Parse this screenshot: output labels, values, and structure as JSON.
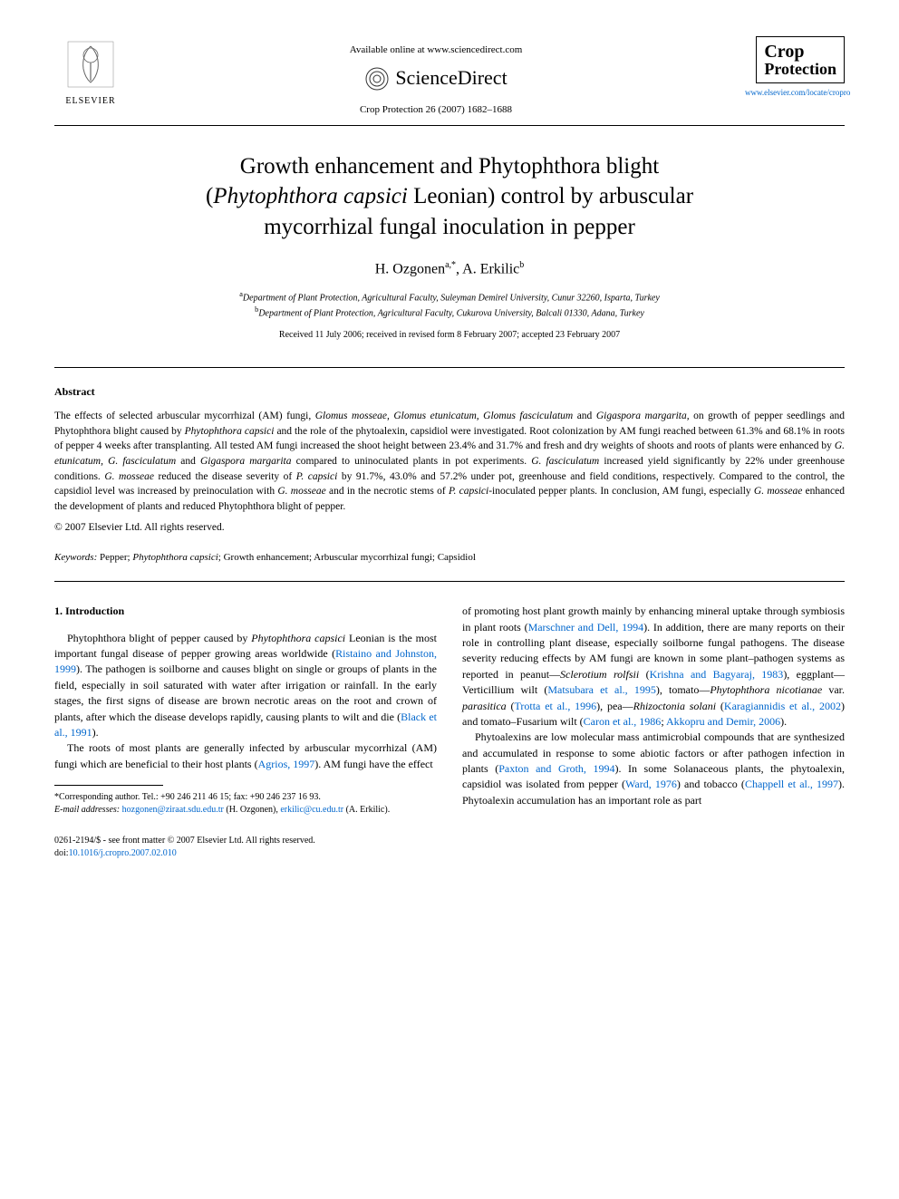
{
  "header": {
    "elsevier_label": "ELSEVIER",
    "available_text": "Available online at www.sciencedirect.com",
    "sciencedirect_label": "ScienceDirect",
    "citation": "Crop Protection 26 (2007) 1682–1688",
    "journal_line1": "Crop",
    "journal_line2": "Protection",
    "journal_url": "www.elsevier.com/locate/cropro"
  },
  "title": {
    "line1": "Growth enhancement and Phytophthora blight",
    "line2_open": "(",
    "line2_italic": "Phytophthora capsici",
    "line2_rest": " Leonian) control by arbuscular",
    "line3": "mycorrhizal fungal inoculation in pepper"
  },
  "authors": {
    "a1_name": "H. Ozgonen",
    "a1_sup": "a,",
    "a1_star": "*",
    "sep": ", ",
    "a2_name": "A. Erkilic",
    "a2_sup": "b"
  },
  "affiliations": {
    "a_sup": "a",
    "a_text": "Department of Plant Protection, Agricultural Faculty, Suleyman Demirel University, Cunur 32260, Isparta, Turkey",
    "b_sup": "b",
    "b_text": "Department of Plant Protection, Agricultural Faculty, Cukurova University, Balcali 01330, Adana, Turkey"
  },
  "dates": "Received 11 July 2006; received in revised form 8 February 2007; accepted 23 February 2007",
  "abstract": {
    "heading": "Abstract",
    "body_parts": [
      {
        "t": "plain",
        "v": "The effects of selected arbuscular mycorrhizal (AM) fungi, "
      },
      {
        "t": "ital",
        "v": "Glomus mosseae, Glomus etunicatum, Glomus fasciculatum"
      },
      {
        "t": "plain",
        "v": " and "
      },
      {
        "t": "ital",
        "v": "Gigaspora margarita,"
      },
      {
        "t": "plain",
        "v": " on growth of pepper seedlings and Phytophthora blight caused by "
      },
      {
        "t": "ital",
        "v": "Phytophthora capsici"
      },
      {
        "t": "plain",
        "v": " and the role of the phytoalexin, capsidiol were investigated. Root colonization by AM fungi reached between 61.3% and 68.1% in roots of pepper 4 weeks after transplanting. All tested AM fungi increased the shoot height between 23.4% and 31.7% and fresh and dry weights of shoots and roots of plants were enhanced by "
      },
      {
        "t": "ital",
        "v": "G. etunicatum, G. fasciculatum"
      },
      {
        "t": "plain",
        "v": " and "
      },
      {
        "t": "ital",
        "v": "Gigaspora margarita"
      },
      {
        "t": "plain",
        "v": " compared to uninoculated plants in pot experiments. "
      },
      {
        "t": "ital",
        "v": "G. fasciculatum"
      },
      {
        "t": "plain",
        "v": " increased yield significantly by 22% under greenhouse conditions. "
      },
      {
        "t": "ital",
        "v": "G. mosseae"
      },
      {
        "t": "plain",
        "v": " reduced the disease severity of "
      },
      {
        "t": "ital",
        "v": "P. capsici"
      },
      {
        "t": "plain",
        "v": " by 91.7%, 43.0% and 57.2% under pot, greenhouse and field conditions, respectively. Compared to the control, the capsidiol level was increased by preinoculation with "
      },
      {
        "t": "ital",
        "v": "G. mosseae"
      },
      {
        "t": "plain",
        "v": " and in the necrotic stems of "
      },
      {
        "t": "ital",
        "v": "P. capsici"
      },
      {
        "t": "plain",
        "v": "-inoculated pepper plants. In conclusion, AM fungi, especially "
      },
      {
        "t": "ital",
        "v": "G. mosseae"
      },
      {
        "t": "plain",
        "v": " enhanced the development of plants and reduced Phytophthora blight of pepper."
      }
    ],
    "copyright": "© 2007 Elsevier Ltd. All rights reserved."
  },
  "keywords": {
    "label": "Keywords:",
    "parts": [
      {
        "t": "plain",
        "v": " Pepper; "
      },
      {
        "t": "ital",
        "v": "Phytophthora capsici"
      },
      {
        "t": "plain",
        "v": "; Growth enhancement; Arbuscular mycorrhizal fungi; Capsidiol"
      }
    ]
  },
  "intro": {
    "heading": "1. Introduction",
    "col1": [
      {
        "type": "para",
        "runs": [
          {
            "t": "plain",
            "v": "Phytophthora blight of pepper caused by "
          },
          {
            "t": "ital",
            "v": "Phytophthora capsici"
          },
          {
            "t": "plain",
            "v": " Leonian is the most important fungal disease of pepper growing areas worldwide ("
          },
          {
            "t": "link",
            "v": "Ristaino and Johnston, 1999"
          },
          {
            "t": "plain",
            "v": "). The pathogen is soilborne and causes blight on single or groups of plants in the field, especially in soil saturated with water after irrigation or rainfall. In the early stages, the first signs of disease are brown necrotic areas on the root and crown of plants, after which the disease develops rapidly, causing plants to wilt and die ("
          },
          {
            "t": "link",
            "v": "Black et al., 1991"
          },
          {
            "t": "plain",
            "v": ")."
          }
        ]
      },
      {
        "type": "para",
        "runs": [
          {
            "t": "plain",
            "v": "The roots of most plants are generally infected by arbuscular mycorrhizal (AM) fungi which are beneficial to their host plants ("
          },
          {
            "t": "link",
            "v": "Agrios, 1997"
          },
          {
            "t": "plain",
            "v": "). AM fungi have the effect"
          }
        ]
      }
    ],
    "col2": [
      {
        "type": "para_cont",
        "runs": [
          {
            "t": "plain",
            "v": "of promoting host plant growth mainly by enhancing mineral uptake through symbiosis in plant roots ("
          },
          {
            "t": "link",
            "v": "Marschner and Dell, 1994"
          },
          {
            "t": "plain",
            "v": "). In addition, there are many reports on their role in controlling plant disease, especially soilborne fungal pathogens. The disease severity reducing effects by AM fungi are known in some plant–pathogen systems as reported in peanut—"
          },
          {
            "t": "ital",
            "v": "Sclerotium rolfsii"
          },
          {
            "t": "plain",
            "v": " ("
          },
          {
            "t": "link",
            "v": "Krishna and Bagyaraj, 1983"
          },
          {
            "t": "plain",
            "v": "), eggplant—Verticillium wilt ("
          },
          {
            "t": "link",
            "v": "Matsubara et al., 1995"
          },
          {
            "t": "plain",
            "v": "), tomato—"
          },
          {
            "t": "ital",
            "v": "Phytophthora nicotianae"
          },
          {
            "t": "plain",
            "v": " var. "
          },
          {
            "t": "ital",
            "v": "parasitica"
          },
          {
            "t": "plain",
            "v": " ("
          },
          {
            "t": "link",
            "v": "Trotta et al., 1996"
          },
          {
            "t": "plain",
            "v": "), pea—"
          },
          {
            "t": "ital",
            "v": "Rhizoctonia solani"
          },
          {
            "t": "plain",
            "v": " ("
          },
          {
            "t": "link",
            "v": "Karagiannidis et al., 2002"
          },
          {
            "t": "plain",
            "v": ") and tomato–Fusarium wilt ("
          },
          {
            "t": "link",
            "v": "Caron et al., 1986"
          },
          {
            "t": "plain",
            "v": "; "
          },
          {
            "t": "link",
            "v": "Akkopru and Demir, 2006"
          },
          {
            "t": "plain",
            "v": ")."
          }
        ]
      },
      {
        "type": "para",
        "runs": [
          {
            "t": "plain",
            "v": "Phytoalexins are low molecular mass antimicrobial compounds that are synthesized and accumulated in response to some abiotic factors or after pathogen infection in plants ("
          },
          {
            "t": "link",
            "v": "Paxton and Groth, 1994"
          },
          {
            "t": "plain",
            "v": "). In some Solanaceous plants, the phytoalexin, capsidiol was isolated from pepper ("
          },
          {
            "t": "link",
            "v": "Ward, 1976"
          },
          {
            "t": "plain",
            "v": ") and tobacco ("
          },
          {
            "t": "link",
            "v": "Chappell et al., 1997"
          },
          {
            "t": "plain",
            "v": "). Phytoalexin accumulation has an important role as part"
          }
        ]
      }
    ]
  },
  "footnote": {
    "corr": "*Corresponding author. Tel.: +90 246 211 46 15; fax: +90 246 237 16 93.",
    "email_label": "E-mail addresses:",
    "email1": "hozgonen@ziraat.sdu.edu.tr",
    "email1_who": " (H. Ozgonen),",
    "email2": "erkilic@cu.edu.tr",
    "email2_who": " (A. Erkilic)."
  },
  "bottom": {
    "line1": "0261-2194/$ - see front matter © 2007 Elsevier Ltd. All rights reserved.",
    "doi_label": "doi:",
    "doi": "10.1016/j.cropro.2007.02.010"
  },
  "colors": {
    "link": "#0066cc",
    "text": "#000000",
    "bg": "#ffffff"
  }
}
